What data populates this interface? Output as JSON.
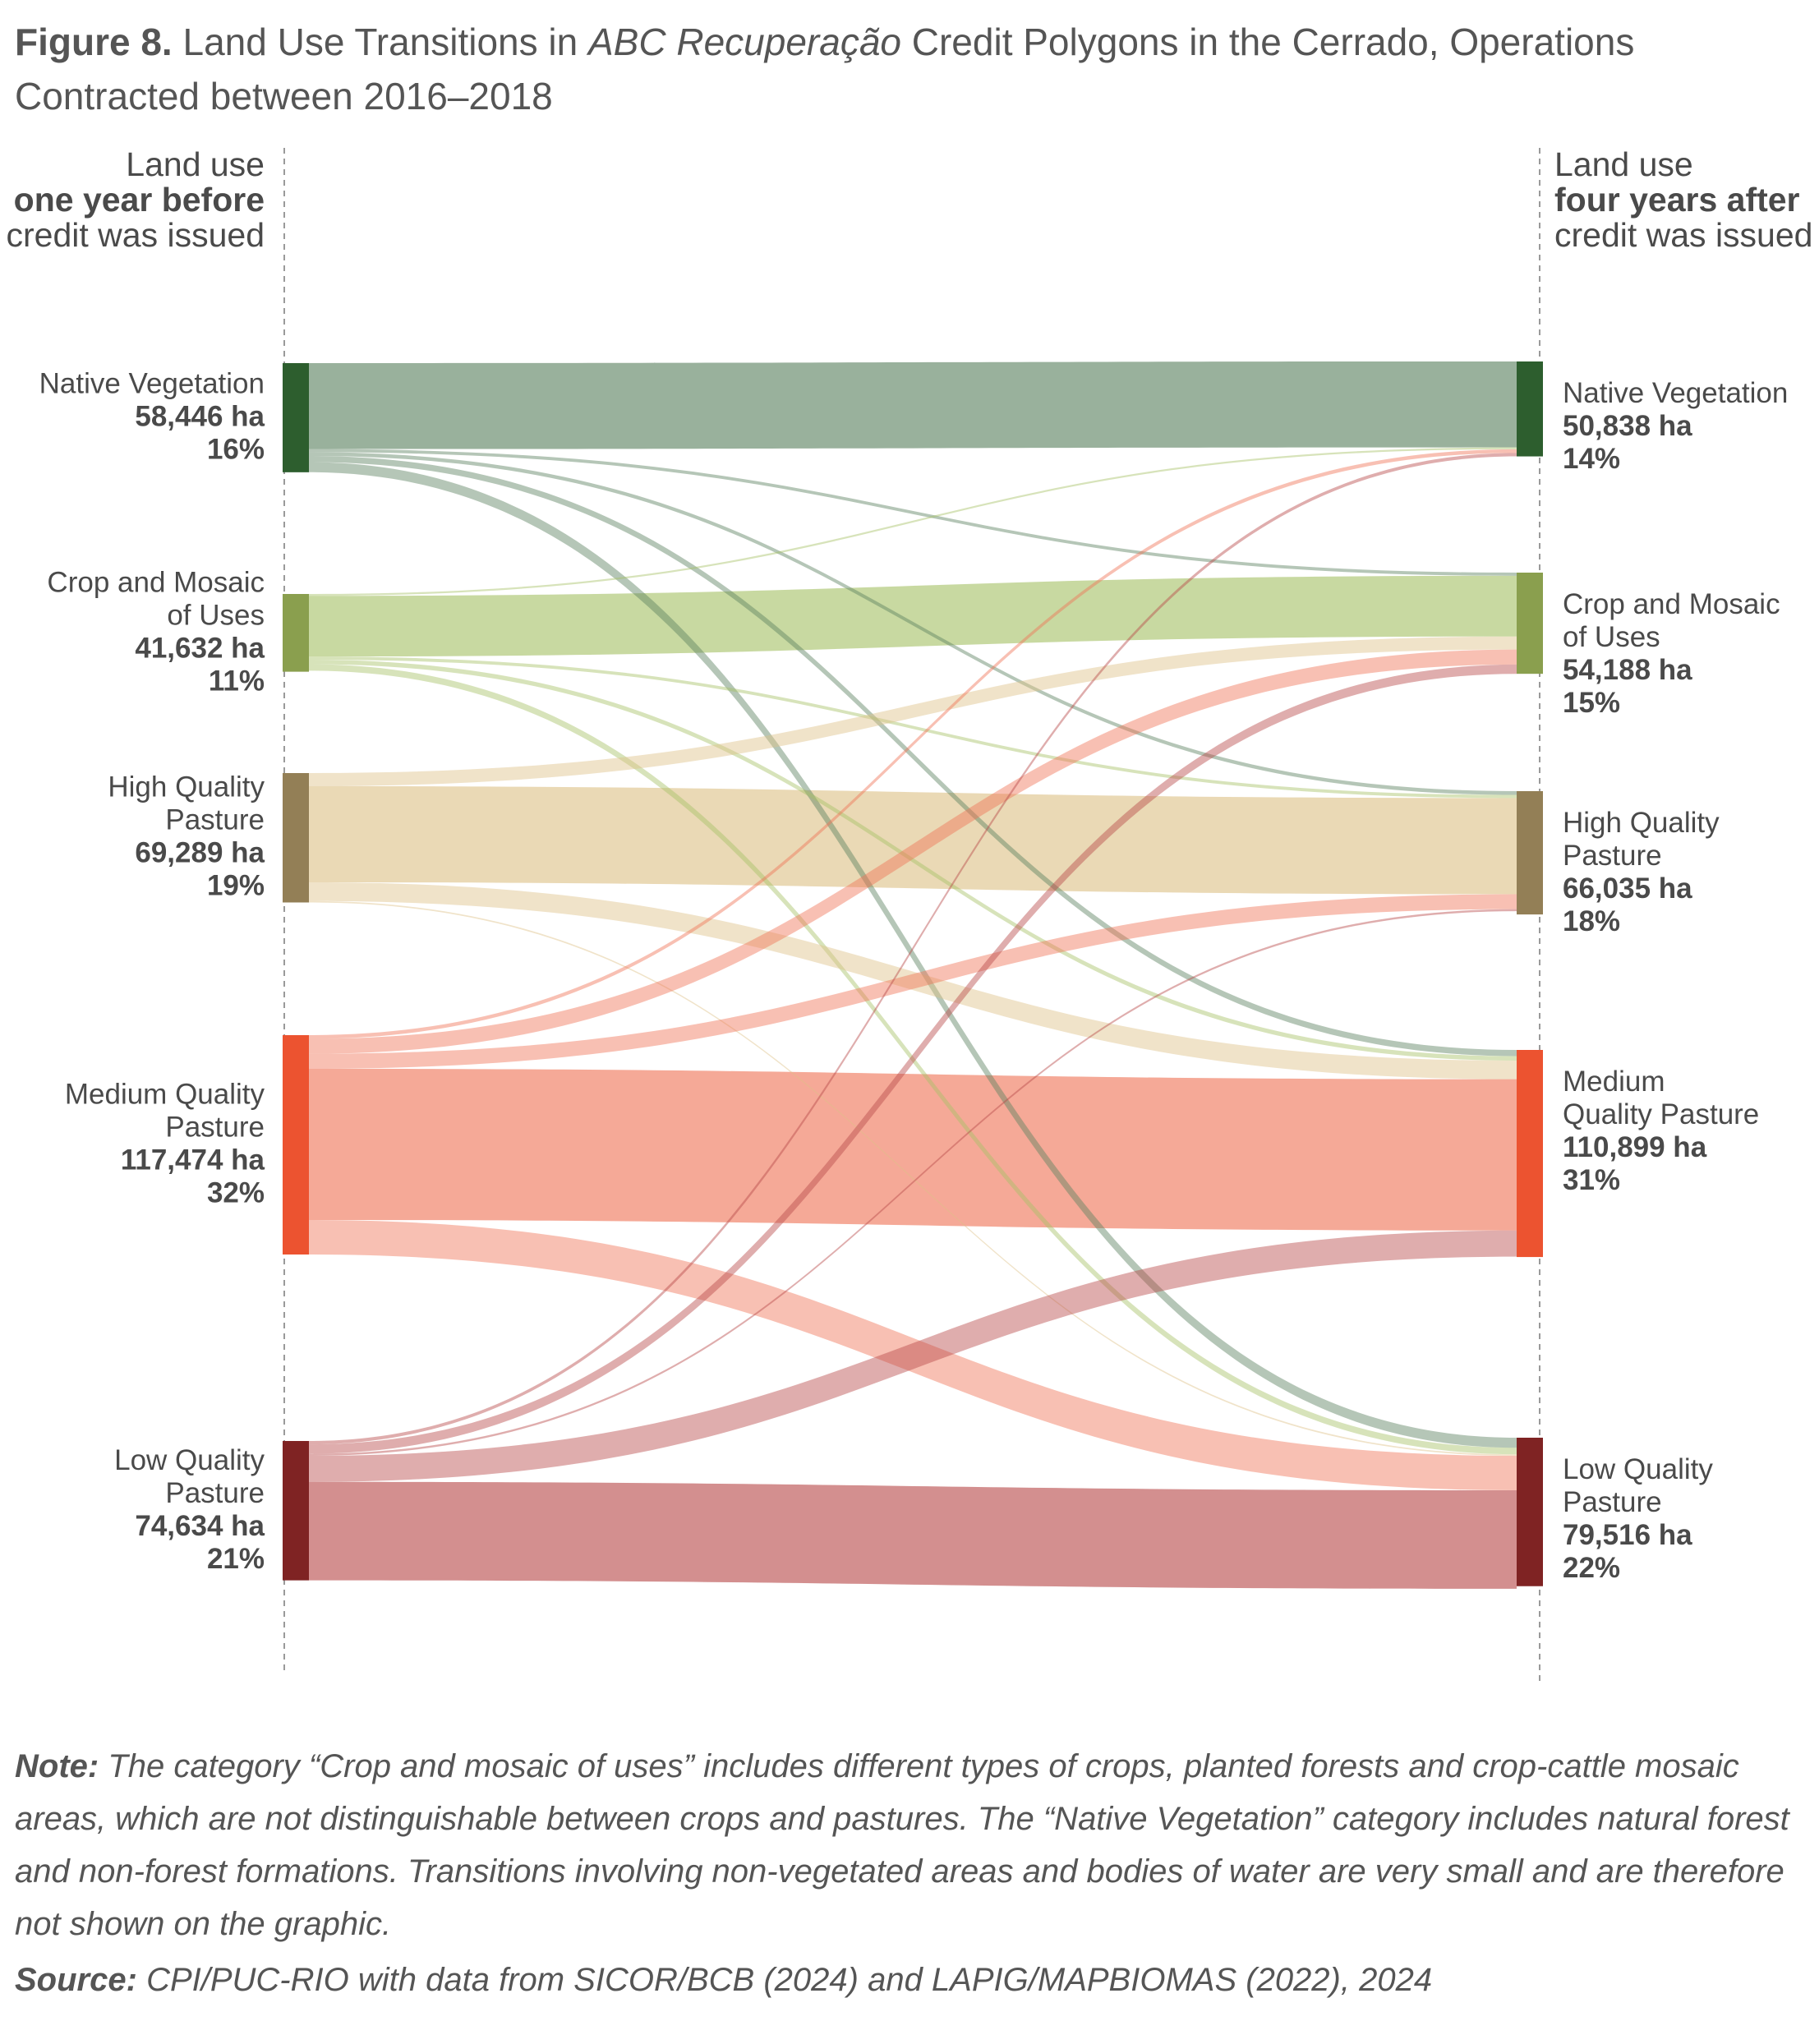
{
  "figure": {
    "label": "Figure 8.",
    "title_pre": "Land Use Transitions in ",
    "title_italic": "ABC Recuperação",
    "title_post": " Credit Polygons in the Cerrado, Operations Contracted between 2016–2018"
  },
  "columns": {
    "left": [
      "Land use",
      "one year before",
      "credit was issued"
    ],
    "right": [
      "Land use",
      "four years after",
      "credit was issued"
    ]
  },
  "note": {
    "label": "Note:",
    "text": "The category “Crop and mosaic of uses” includes different types of crops, planted forests and crop-cattle mosaic areas, which are not distinguishable between crops and pastures. The “Native Vegetation” category includes natural forest and non-forest formations. Transitions involving non-vegetated areas and bodies of water are very small and are therefore not shown on the graphic."
  },
  "source": {
    "label": "Source:",
    "text": "CPI/PUC-RIO with data from SICOR/BCB (2024) and LAPIG/MAPBIOMAS (2022), 2024"
  },
  "chart_data": {
    "type": "sankey",
    "title": "Land Use Transitions in ABC Recuperação Credit Polygons in the Cerrado, Operations Contracted between 2016–2018",
    "unit": "ha",
    "left_nodes": [
      {
        "id": "nv",
        "name": [
          "Native Vegetation"
        ],
        "area": "58,446 ha",
        "share": "16%",
        "value": 58446,
        "color": "#2d5e2e",
        "flow_color": "#5a8160"
      },
      {
        "id": "crop",
        "name": [
          "Crop and Mosaic",
          "of Uses"
        ],
        "area": "41,632 ha",
        "share": "11%",
        "value": 41632,
        "color": "#8a9f4e",
        "flow_color": "#a7c167"
      },
      {
        "id": "hq",
        "name": [
          "High Quality",
          "Pasture"
        ],
        "area": "69,289 ha",
        "share": "19%",
        "value": 69289,
        "color": "#937f56",
        "flow_color": "#ddc188"
      },
      {
        "id": "mq",
        "name": [
          "Medium Quality",
          "Pasture"
        ],
        "area": "117,474 ha",
        "share": "32%",
        "value": 117474,
        "color": "#ec5330",
        "flow_color": "#ef7457"
      },
      {
        "id": "lq",
        "name": [
          "Low Quality",
          "Pasture"
        ],
        "area": "74,634 ha",
        "share": "21%",
        "value": 74634,
        "color": "#7f2323",
        "flow_color": "#b84a4a"
      }
    ],
    "right_nodes": [
      {
        "id": "nv",
        "name": [
          "Native Vegetation"
        ],
        "area": "50,838 ha",
        "share": "14%",
        "value": 50838,
        "color": "#2d5e2e"
      },
      {
        "id": "crop",
        "name": [
          "Crop and Mosaic",
          "of Uses"
        ],
        "area": "54,188 ha",
        "share": "15%",
        "value": 54188,
        "color": "#8a9f4e"
      },
      {
        "id": "hq",
        "name": [
          "High Quality",
          "Pasture"
        ],
        "area": "66,035 ha",
        "share": "18%",
        "value": 66035,
        "color": "#937f56"
      },
      {
        "id": "mq",
        "name": [
          "Medium",
          "Quality Pasture"
        ],
        "area": "110,899 ha",
        "share": "31%",
        "value": 110899,
        "color": "#ec5330"
      },
      {
        "id": "lq",
        "name": [
          "Low Quality",
          "Pasture"
        ],
        "area": "79,516 ha",
        "share": "22%",
        "value": 79516,
        "color": "#7f2323"
      }
    ],
    "flows": [
      {
        "from": "nv",
        "to": "nv",
        "value": 46000
      },
      {
        "from": "nv",
        "to": "crop",
        "value": 1700
      },
      {
        "from": "nv",
        "to": "hq",
        "value": 2000
      },
      {
        "from": "nv",
        "to": "mq",
        "value": 3300
      },
      {
        "from": "nv",
        "to": "lq",
        "value": 5400
      },
      {
        "from": "crop",
        "to": "nv",
        "value": 1000
      },
      {
        "from": "crop",
        "to": "crop",
        "value": 32500
      },
      {
        "from": "crop",
        "to": "hq",
        "value": 1700
      },
      {
        "from": "crop",
        "to": "mq",
        "value": 2400
      },
      {
        "from": "crop",
        "to": "lq",
        "value": 3500
      },
      {
        "from": "hq",
        "to": "crop",
        "value": 7000
      },
      {
        "from": "hq",
        "to": "hq",
        "value": 51500
      },
      {
        "from": "hq",
        "to": "mq",
        "value": 10000
      },
      {
        "from": "hq",
        "to": "lq",
        "value": 800
      },
      {
        "from": "mq",
        "to": "nv",
        "value": 2000
      },
      {
        "from": "mq",
        "to": "crop",
        "value": 8000
      },
      {
        "from": "mq",
        "to": "hq",
        "value": 8000
      },
      {
        "from": "mq",
        "to": "mq",
        "value": 81000
      },
      {
        "from": "mq",
        "to": "lq",
        "value": 18474
      },
      {
        "from": "lq",
        "to": "nv",
        "value": 1800
      },
      {
        "from": "lq",
        "to": "crop",
        "value": 5000
      },
      {
        "from": "lq",
        "to": "hq",
        "value": 1100
      },
      {
        "from": "lq",
        "to": "mq",
        "value": 14000
      },
      {
        "from": "lq",
        "to": "lq",
        "value": 52734
      }
    ]
  }
}
